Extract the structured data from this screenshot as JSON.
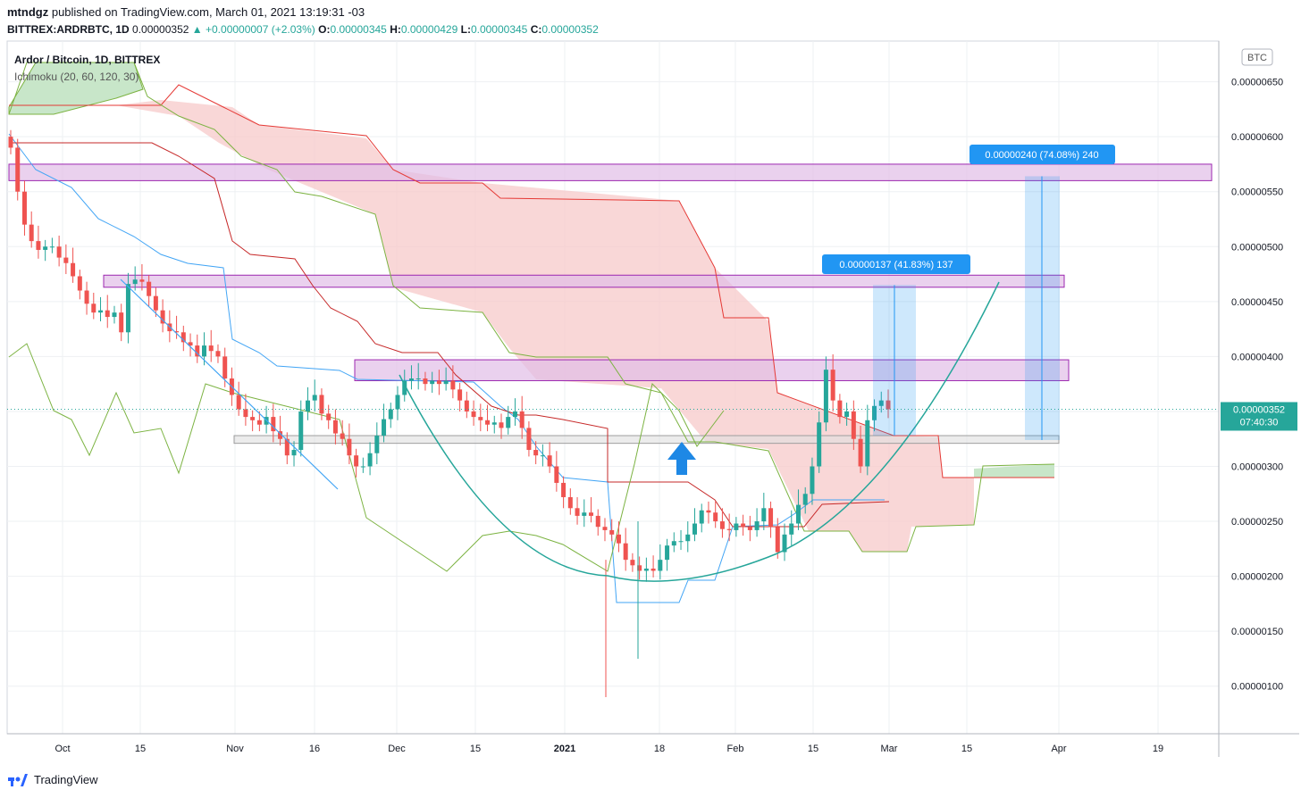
{
  "header": {
    "user": "mtndgz",
    "published": "published on TradingView.com, March 01, 2021 13:19:31 -03",
    "symbol": "BITTREX:ARDRBTC, 1D",
    "last": "0.00000352",
    "change": "+0.00000007 (+2.03%)",
    "ohlc": [
      {
        "label": "O:",
        "value": "0.00000345"
      },
      {
        "label": "H:",
        "value": "0.00000429"
      },
      {
        "label": "L:",
        "value": "0.00000345"
      },
      {
        "label": "C:",
        "value": "0.00000352"
      }
    ]
  },
  "branding": {
    "name": "TradingView"
  },
  "colors": {
    "up": "#26a69a",
    "down": "#ef5350",
    "cloud_bear": "#f7c9c9",
    "cloud_bull": "#c8e6c9",
    "zone": "#e1bee7",
    "zone_border": "#9c27b0",
    "measure": "#2196f3"
  },
  "chart_data": {
    "type": "candlestick",
    "title": "Ardor / Bitcoin, 1D, BITTREX",
    "indicator": "Ichimoku (20, 60, 120, 30)",
    "currency_badge": "BTC",
    "x_ticks": [
      "Oct",
      "15",
      "Nov",
      "16",
      "Dec",
      "15",
      "2021",
      "18",
      "Feb",
      "15",
      "Mar",
      "15",
      "Apr",
      "19"
    ],
    "y_ticks": [
      "0.00000650",
      "0.00000600",
      "0.00000550",
      "0.00000500",
      "0.00000450",
      "0.00000400",
      "0.00000350",
      "0.00000300",
      "0.00000250",
      "0.00000200",
      "0.00000150",
      "0.00000100"
    ],
    "ylim": [
      5.5e-07,
      6.95e-06
    ],
    "last_price": {
      "value": "0.00000352",
      "countdown": "07:40:30"
    },
    "candles_close": [
      590,
      550,
      520,
      505,
      497,
      500,
      500,
      490,
      485,
      473,
      460,
      448,
      440,
      442,
      436,
      440,
      422,
      466,
      470,
      468,
      455,
      442,
      430,
      423,
      422,
      413,
      410,
      400,
      410,
      405,
      400,
      380,
      365,
      352,
      345,
      342,
      338,
      345,
      332,
      325,
      310,
      315,
      350,
      360,
      365,
      348,
      342,
      330,
      325,
      310,
      300,
      300,
      312,
      328,
      343,
      352,
      365,
      378,
      380,
      380,
      375,
      378,
      375,
      378,
      370,
      360,
      350,
      345,
      342,
      338,
      340,
      335,
      345,
      350,
      335,
      315,
      310,
      310,
      300,
      285,
      272,
      262,
      255,
      258,
      255,
      245,
      242,
      238,
      230,
      215,
      210,
      205,
      207,
      205,
      215,
      228,
      232,
      232,
      238,
      248,
      260,
      258,
      250,
      243,
      242,
      248,
      245,
      242,
      250,
      262,
      245,
      222,
      238,
      248,
      265,
      275,
      300,
      340,
      388,
      360,
      345,
      350,
      325,
      300,
      342,
      355,
      360,
      352
    ],
    "zones": [
      {
        "name": "resistance-top",
        "low": 5.6e-06,
        "high": 5.75e-06
      },
      {
        "name": "resistance-mid",
        "low": 4.63e-06,
        "high": 4.74e-06
      },
      {
        "name": "resistance-low",
        "low": 3.78e-06,
        "high": 3.97e-06
      },
      {
        "name": "support",
        "low": 3.21e-06,
        "high": 3.28e-06
      }
    ],
    "measures": [
      {
        "label": "0.00000137 (41.83%) 137"
      },
      {
        "label": "0.00000240 (74.08%) 240"
      }
    ]
  }
}
